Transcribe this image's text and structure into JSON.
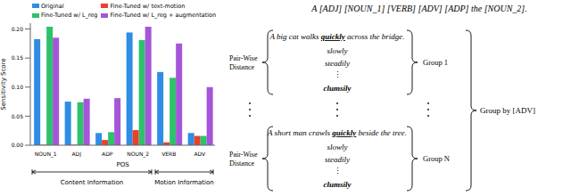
{
  "chart_data": {
    "type": "bar",
    "x_label": "POS",
    "y_label": "Sensitivity Score",
    "categories": [
      "NOUN_1",
      "ADJ",
      "ADP",
      "NOUN_2",
      "VERB",
      "ADV"
    ],
    "series": [
      {
        "name": "Original",
        "color": "#2f8de4",
        "values": [
          0.1825,
          0.075,
          0.021,
          0.194,
          0.126,
          0.021
        ]
      },
      {
        "name": "Fine-Tuned w/ text-motion",
        "color": "#e8412c",
        "values": [
          0.001,
          0.001,
          0.009,
          0.026,
          0.005,
          0.016
        ]
      },
      {
        "name": "Fine-Tuned w/ L_reg",
        "color": "#2dc26b",
        "values": [
          0.204,
          0.074,
          0.0225,
          0.181,
          0.116,
          0.016
        ]
      },
      {
        "name": "Fine-Tuned w/ L_reg + augmentation",
        "color": "#a455d8",
        "values": [
          0.185,
          0.08,
          0.081,
          0.204,
          0.175,
          0.1
        ]
      }
    ],
    "ylim": [
      0,
      0.21
    ],
    "yticks": [
      {
        "value": 0,
        "label": "0.00"
      },
      {
        "value": 0.05,
        "label": "0.05"
      },
      {
        "value": 0.1,
        "label": "0.10"
      },
      {
        "value": 0.15,
        "label": "0.15"
      },
      {
        "value": 0.2,
        "label": "0.20"
      }
    ],
    "grid": false,
    "legend": "top",
    "annotations": [
      {
        "text": "Content Information",
        "categories": [
          "NOUN_1",
          "ADJ",
          "ADP",
          "NOUN_2"
        ]
      },
      {
        "text": "Motion Information",
        "categories": [
          "VERB",
          "ADV"
        ]
      }
    ]
  },
  "diagram": {
    "template": "A [ADJ] [NOUN_1] [VERB] [ADV] [ADP] the [NOUN_2].",
    "distance_label": [
      "Pair-Wise",
      "Distance"
    ],
    "ellipsis": "⋮",
    "group_by": "Group by [ADV]",
    "groups": [
      {
        "label": "Group 1",
        "prefix": "A big cat walks ",
        "adverb": "quickly",
        "suffix": " across the bridge.",
        "alternatives": [
          "slowly",
          "steadily",
          "clumsily"
        ]
      },
      {
        "label": "Group N",
        "prefix": "A short man crawls ",
        "adverb": "quickly",
        "suffix": " beside the tree.",
        "alternatives": [
          "slowly",
          "steadily",
          "clumsily"
        ]
      }
    ]
  }
}
